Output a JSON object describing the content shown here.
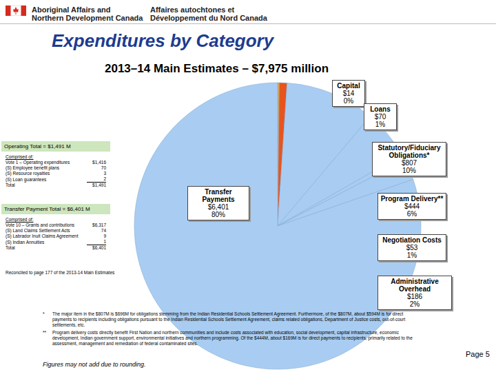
{
  "header": {
    "org_en": [
      "Aboriginal Affairs and",
      "Northern Development Canada"
    ],
    "org_fr": [
      "Affaires autochtones et",
      "Développement du Nord Canada"
    ],
    "title": "Expenditures by Category"
  },
  "chart_data": {
    "type": "pie",
    "title": "2013–14 Main Estimates – $7,975 million",
    "categories": [
      "Capital",
      "Loans",
      "Statutory/Fiduciary Obligations*",
      "Program Delivery**",
      "Negotiation Costs",
      "Administrative Overhead",
      "Transfer Payments"
    ],
    "values": [
      14,
      70,
      807,
      444,
      53,
      186,
      6401
    ],
    "value_labels": [
      "$14",
      "$70",
      "$807",
      "$444",
      "$53",
      "$186",
      "$6,401"
    ],
    "percent_labels": [
      "0%",
      "1%",
      "10%",
      "6%",
      "1%",
      "2%",
      "80%"
    ],
    "colors": [
      "#f5a31a",
      "#e8541e",
      "#a9cdf2",
      "#a9cdf2",
      "#a9cdf2",
      "#a9cdf2",
      "#a9cdf2"
    ],
    "data_labels": true
  },
  "operating": {
    "title": "Operating Total = $1,491 M",
    "subtitle": "Comprised of:",
    "rows": [
      [
        "Vote 1 – Operating expenditures",
        "$1,416"
      ],
      [
        "(S) Employee benefit plans",
        "70"
      ],
      [
        "(S) Resource royalties",
        "3"
      ],
      [
        "(S) Loan guarantees",
        "2"
      ],
      [
        "Total",
        "$1,491"
      ]
    ]
  },
  "transfer": {
    "title": "Transfer Payment Total = $6,401 M",
    "subtitle": "Comprised of:",
    "rows": [
      [
        "Vote 10 – Grants and contributions",
        "$6,317"
      ],
      [
        "(S) Land Claims Settlement Acts",
        "74"
      ],
      [
        "(S) Labrador Inuit Claims Agreement",
        "9"
      ],
      [
        "(S) Indian Annuities",
        "1"
      ],
      [
        "Total",
        "$6,401"
      ]
    ]
  },
  "reconciled": "Reconciled to page 177 of the 2013-14 Main Estimates",
  "footnotes": [
    [
      "*",
      "The major item in the $807M is $696M for obligations stemming from the Indian Residential Schools Settlement Agreement. Furthermore, of the $807M, about $594M is for direct payments to recipients including obligations pursuant to the Indian Residential Schools Settlement Agreement, claims related obligations, Department of Justice costs, out-of-court settlements, etc."
    ],
    [
      "**",
      "Program delivery costs directly benefit First Nation and northern communities and include costs associated with education, social development, capital infrastructure, economic development, Indian government support, environmental initiatives and northern programming. Of the $444M, about $169M is for direct payments to recipients, primarily related to the assessment, management and remediation of federal contaminated sites."
    ]
  ],
  "rounding": "Figures may not add due to rounding.",
  "page": "Page 5"
}
